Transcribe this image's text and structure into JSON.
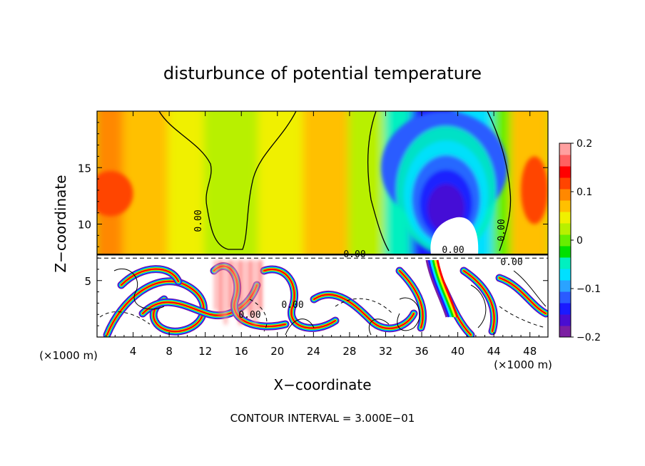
{
  "chart_data": {
    "type": "heatmap",
    "title": "disturbunce of potential temperature",
    "xlabel": "X−coordinate",
    "ylabel": "Z−coordinate",
    "x_unit": "(×1000 m)",
    "z_unit": "(×1000 m)",
    "xlim": [
      0,
      50
    ],
    "ylim": [
      0,
      20
    ],
    "x_ticks": [
      4,
      8,
      12,
      16,
      20,
      24,
      28,
      32,
      36,
      40,
      44,
      48
    ],
    "x_tick_labels": [
      "4",
      "8",
      "12",
      "16",
      "20",
      "24",
      "28",
      "32",
      "36",
      "40",
      "44",
      "48"
    ],
    "y_ticks": [
      5,
      10,
      15
    ],
    "y_tick_labels": [
      "5",
      "10",
      "15"
    ],
    "colorbar": {
      "range": [
        -0.2,
        0.2
      ],
      "ticks": [
        0.2,
        0.1,
        0,
        -0.1,
        -0.2
      ],
      "tick_labels": [
        "0.2",
        "0.1",
        "0",
        "−0.1",
        "−0.2"
      ],
      "colors": [
        "#7b1fa2",
        "#4a0dd1",
        "#1a1aff",
        "#2a5bff",
        "#2aa3ff",
        "#00e0ff",
        "#00f0c0",
        "#00e000",
        "#66ee00",
        "#b8f000",
        "#f0f000",
        "#ffc000",
        "#ff8800",
        "#ff4400",
        "#ff0000",
        "#ff6060",
        "#ffa0a0"
      ]
    },
    "contour_interval_text": "CONTOUR INTERVAL = 3.000E−01",
    "contour_labels": [
      "0.00",
      "0.00",
      "0.00",
      "0.00",
      "0.00",
      "0.00",
      "0.00"
    ],
    "upper_field": {
      "z_range": [
        7.3,
        20
      ],
      "bands": [
        {
          "x": [
            0,
            3
          ],
          "level": 0.095
        },
        {
          "x": [
            3,
            8
          ],
          "level": 0.08
        },
        {
          "x": [
            8,
            12
          ],
          "level": 0.05
        },
        {
          "x": [
            12,
            18
          ],
          "level": 0.02
        },
        {
          "x": [
            18,
            23
          ],
          "level": 0.04
        },
        {
          "x": [
            23,
            28
          ],
          "level": 0.06
        },
        {
          "x": [
            28,
            32
          ],
          "level": 0.03
        },
        {
          "x": [
            32,
            35
          ],
          "level": -0.05
        },
        {
          "x": [
            35,
            40
          ],
          "level": -0.15
        },
        {
          "x": [
            40,
            44
          ],
          "level": -0.08
        },
        {
          "x": [
            44,
            46
          ],
          "level": 0.0
        },
        {
          "x": [
            46,
            50
          ],
          "level": 0.07
        }
      ],
      "features": [
        {
          "name": "warm-blob-left",
          "x": 1.5,
          "z": 12.7,
          "rx": 2.5,
          "rz": 2.0,
          "level": 0.11
        },
        {
          "name": "warm-blob-right",
          "x": 48.5,
          "z": 13.0,
          "rx": 1.5,
          "rz": 3.0,
          "level": 0.11
        },
        {
          "name": "cold-core",
          "x": 39.0,
          "z": 12.5,
          "rx": 4.0,
          "rz": 4.0,
          "level": -0.18
        },
        {
          "name": "cold-outer",
          "x": 38.5,
          "z": 15.0,
          "rx": 7.0,
          "rz": 5.0,
          "level": -0.11
        }
      ]
    }
  }
}
